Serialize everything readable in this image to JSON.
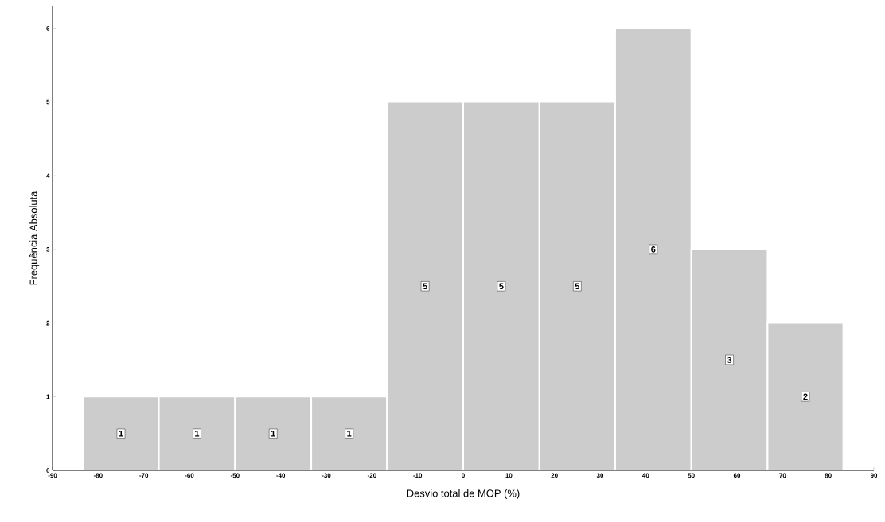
{
  "chart_data": {
    "type": "histogram",
    "xlabel": "Desvio total de MOP (%)",
    "ylabel": "Frequência Absoluta",
    "bins": [
      -83.3,
      -66.7,
      -50,
      -33.3,
      -16.7,
      0,
      16.7,
      33.3,
      50,
      66.7,
      83.3
    ],
    "values": [
      1,
      1,
      1,
      1,
      5,
      5,
      5,
      6,
      3,
      2
    ],
    "color": "#cccccc",
    "xlim": [
      -90,
      90
    ],
    "xticks": [
      -90,
      -80,
      -70,
      -60,
      -50,
      -40,
      -30,
      -20,
      -10,
      0,
      10,
      20,
      30,
      40,
      50,
      60,
      70,
      80,
      90
    ],
    "ylim": [
      0,
      6.3
    ],
    "yticks": [
      0,
      1,
      2,
      3,
      4,
      5,
      6
    ],
    "grid": false,
    "data_labels": true
  }
}
